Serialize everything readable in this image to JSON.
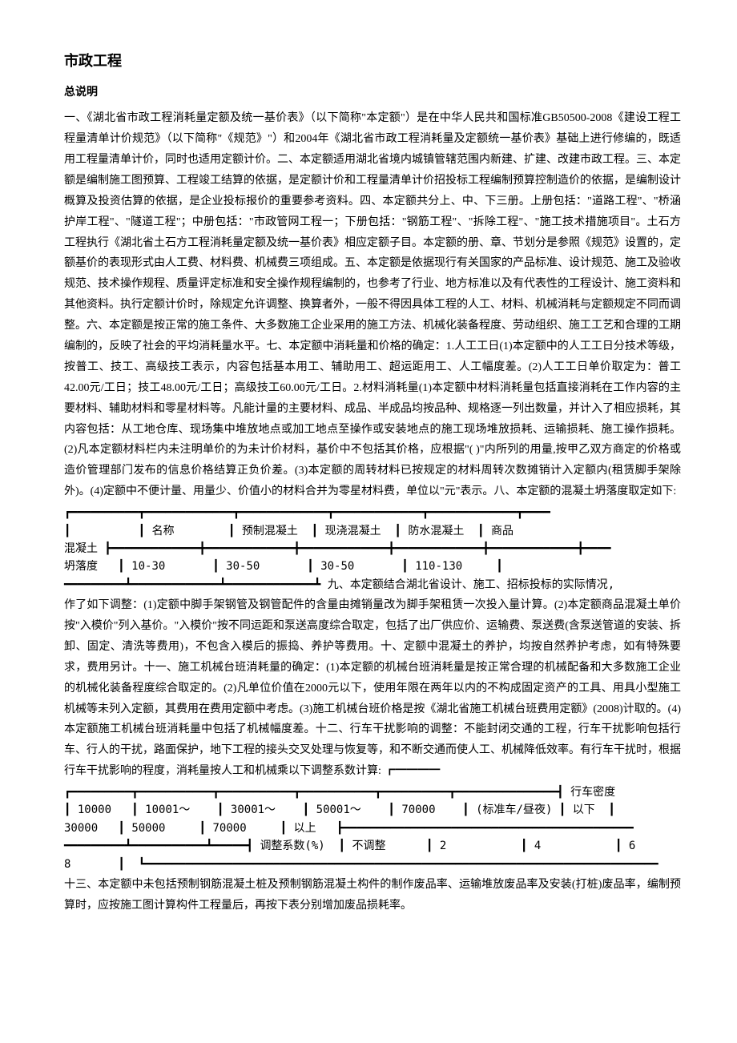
{
  "title": "市政工程",
  "subtitle": "总说明",
  "para1": "一、《湖北省市政工程消耗量定额及统一基价表》（以下简称\"本定额\"）是在中华人民共和国标准GB50500-2008《建设工程工程量清单计价规范》（以下简称\"《规范》\"）和2004年《湖北省市政工程消耗量及定额统一基价表》基础上进行修编的，既适用工程量清单计价，同时也适用定额计价。二、本定额适用湖北省境内城镇管辖范围内新建、扩建、改建市政工程。三、本定额是编制施工图预算、工程竣工结算的依据，是定额计价和工程量清单计价招投标工程编制预算控制造价的依据，是编制设计概算及投资估算的依据，是企业投标报价的重要参考资料。四、本定额共分上、中、下三册。上册包括：\"道路工程\"、\"桥涵护岸工程\"、\"隧道工程\"；中册包括：\"市政管网工程一；下册包括：\"钢筋工程\"、\"拆除工程\"、\"施工技术措施项目\"。土石方工程执行《湖北省土石方工程消耗量定额及统一基价表》相应定额子目。本定额的册、章、节划分是参照《规范》设置的，定额基价的表现形式由人工费、材料费、机械费三项组成。五、本定额是依据现行有关国家的产品标准、设计规范、施工及验收规范、技术操作规程、质量评定标准和安全操作规程编制的，也参考了行业、地方标准以及有代表性的工程设计、施工资料和其他资料。执行定额计价时，除规定允许调整、换算者外，一般不得因具体工程的人工、材料、机械消耗与定额规定不同而调整。六、本定额是按正常的施工条件、大多数施工企业采用的施工方法、机械化装备程度、劳动组织、施工工艺和合理的工期编制的，反映了社会的平均消耗量水平。七、本定额中消耗量和价格的确定：1.人工工日(1)本定额中的人工工日分技术等级，按普工、技工、高级技工表示，内容包括基本用工、辅助用工、超运距用工、人工幅度差。(2)人工工日单价取定为：普工42.00元/工日；技工48.00元/工日；高级技工60.00元/工日。2.材料消耗量(1)本定额中材料消耗量包括直接消耗在工作内容的主要材料、辅助材料和零星材料等。凡能计量的主要材料、成品、半成品均按品种、规格逐一列出数量，并计入了相应损耗，其内容包括：从工地仓库、现场集中堆放地点或加工地点至操作或安装地点的施工现场堆放损耗、运输损耗、施工操作损耗。(2)凡本定额材料栏内未注明单价的为未计价材料，基价中不包括其价格，应根据\"( )\"内所列的用量,按甲乙双方商定的价格或造价管理部门发布的信息价格结算正负价差。(3)本定额的周转材料已按规定的材料周转次数摊销计入定额内(租赁脚手架除外)。(4)定额中不便计量、用量少、价值小的材料合并为零星材料费，单位以\"元\"表示。八、本定额的混凝土坍落度取定如下:",
  "table1": {
    "row1": [
      "",
      "名称",
      "预制混凝土",
      "现浇混凝土",
      "防水混凝土",
      "商品"
    ],
    "row2_label": "混凝土",
    "row3": [
      "坍落度",
      "10-30",
      "30-50",
      "30-50",
      "110-130",
      ""
    ]
  },
  "para2": "九、本定额结合湖北省设计、施工、招标投标的实际情况,作了如下调整：(1)定额中脚手架钢管及钢管配件的含量由摊销量改为脚手架租赁一次投入量计算。(2)本定额商品混凝土单价按\"入模价\"列入基价。\"入模价\"按不同运距和泵送高度综合取定，包括了出厂供应价、运输费、泵送费(含泵送管道的安装、拆卸、固定、清洗等费用)，不包含入模后的振捣、养护等费用。十、定额中混凝土的养护，均按自然养护考虑，如有特殊要求，费用另计。十一、施工机械台班消耗量的确定：(1)本定额的机械台班消耗量是按正常合理的机械配备和大多数施工企业的机械化装备程度综合取定的。(2)凡单位价值在2000元以下，使用年限在两年以内的不构成固定资产的工具、用具小型施工机械等未列入定额，其费用在费用定额中考虑。(3)施工机械台班价格是按《湖北省施工机械台班费用定额》(2008)计取的。(4)本定额施工机械台班消耗量中包括了机械幅度差。十二、行车干扰影响的调整：不能封闭交通的工程，行车干扰影响包括行车、行人的干扰，路面保护，地下工程的接头交叉处理与恢复等，和不断交通而使人工、机械降低效率。有行车干扰时，根据行车干扰影响的程度，消耗量按人工和机械乘以下调整系数计算:",
  "table2": {
    "header_right": "行车密度",
    "row1": [
      "10000",
      "10001～",
      "30001～",
      "50001～",
      "70000",
      "(标准车/昼夜)",
      "以下"
    ],
    "row2": [
      "30000",
      "50000",
      "70000",
      "以上"
    ],
    "row3": [
      "",
      "调整系数(%)",
      "不调整",
      "2",
      "4",
      "6"
    ],
    "row4": "8"
  },
  "para3": "十三、本定额中未包括预制钢筋混凝土桩及预制钢筋混凝土构件的制作废品率、运输堆放废品率及安装(打桩)废品率，编制预算时，应按施工图计算构件工程量后，再按下表分别增加废品损耗率。"
}
